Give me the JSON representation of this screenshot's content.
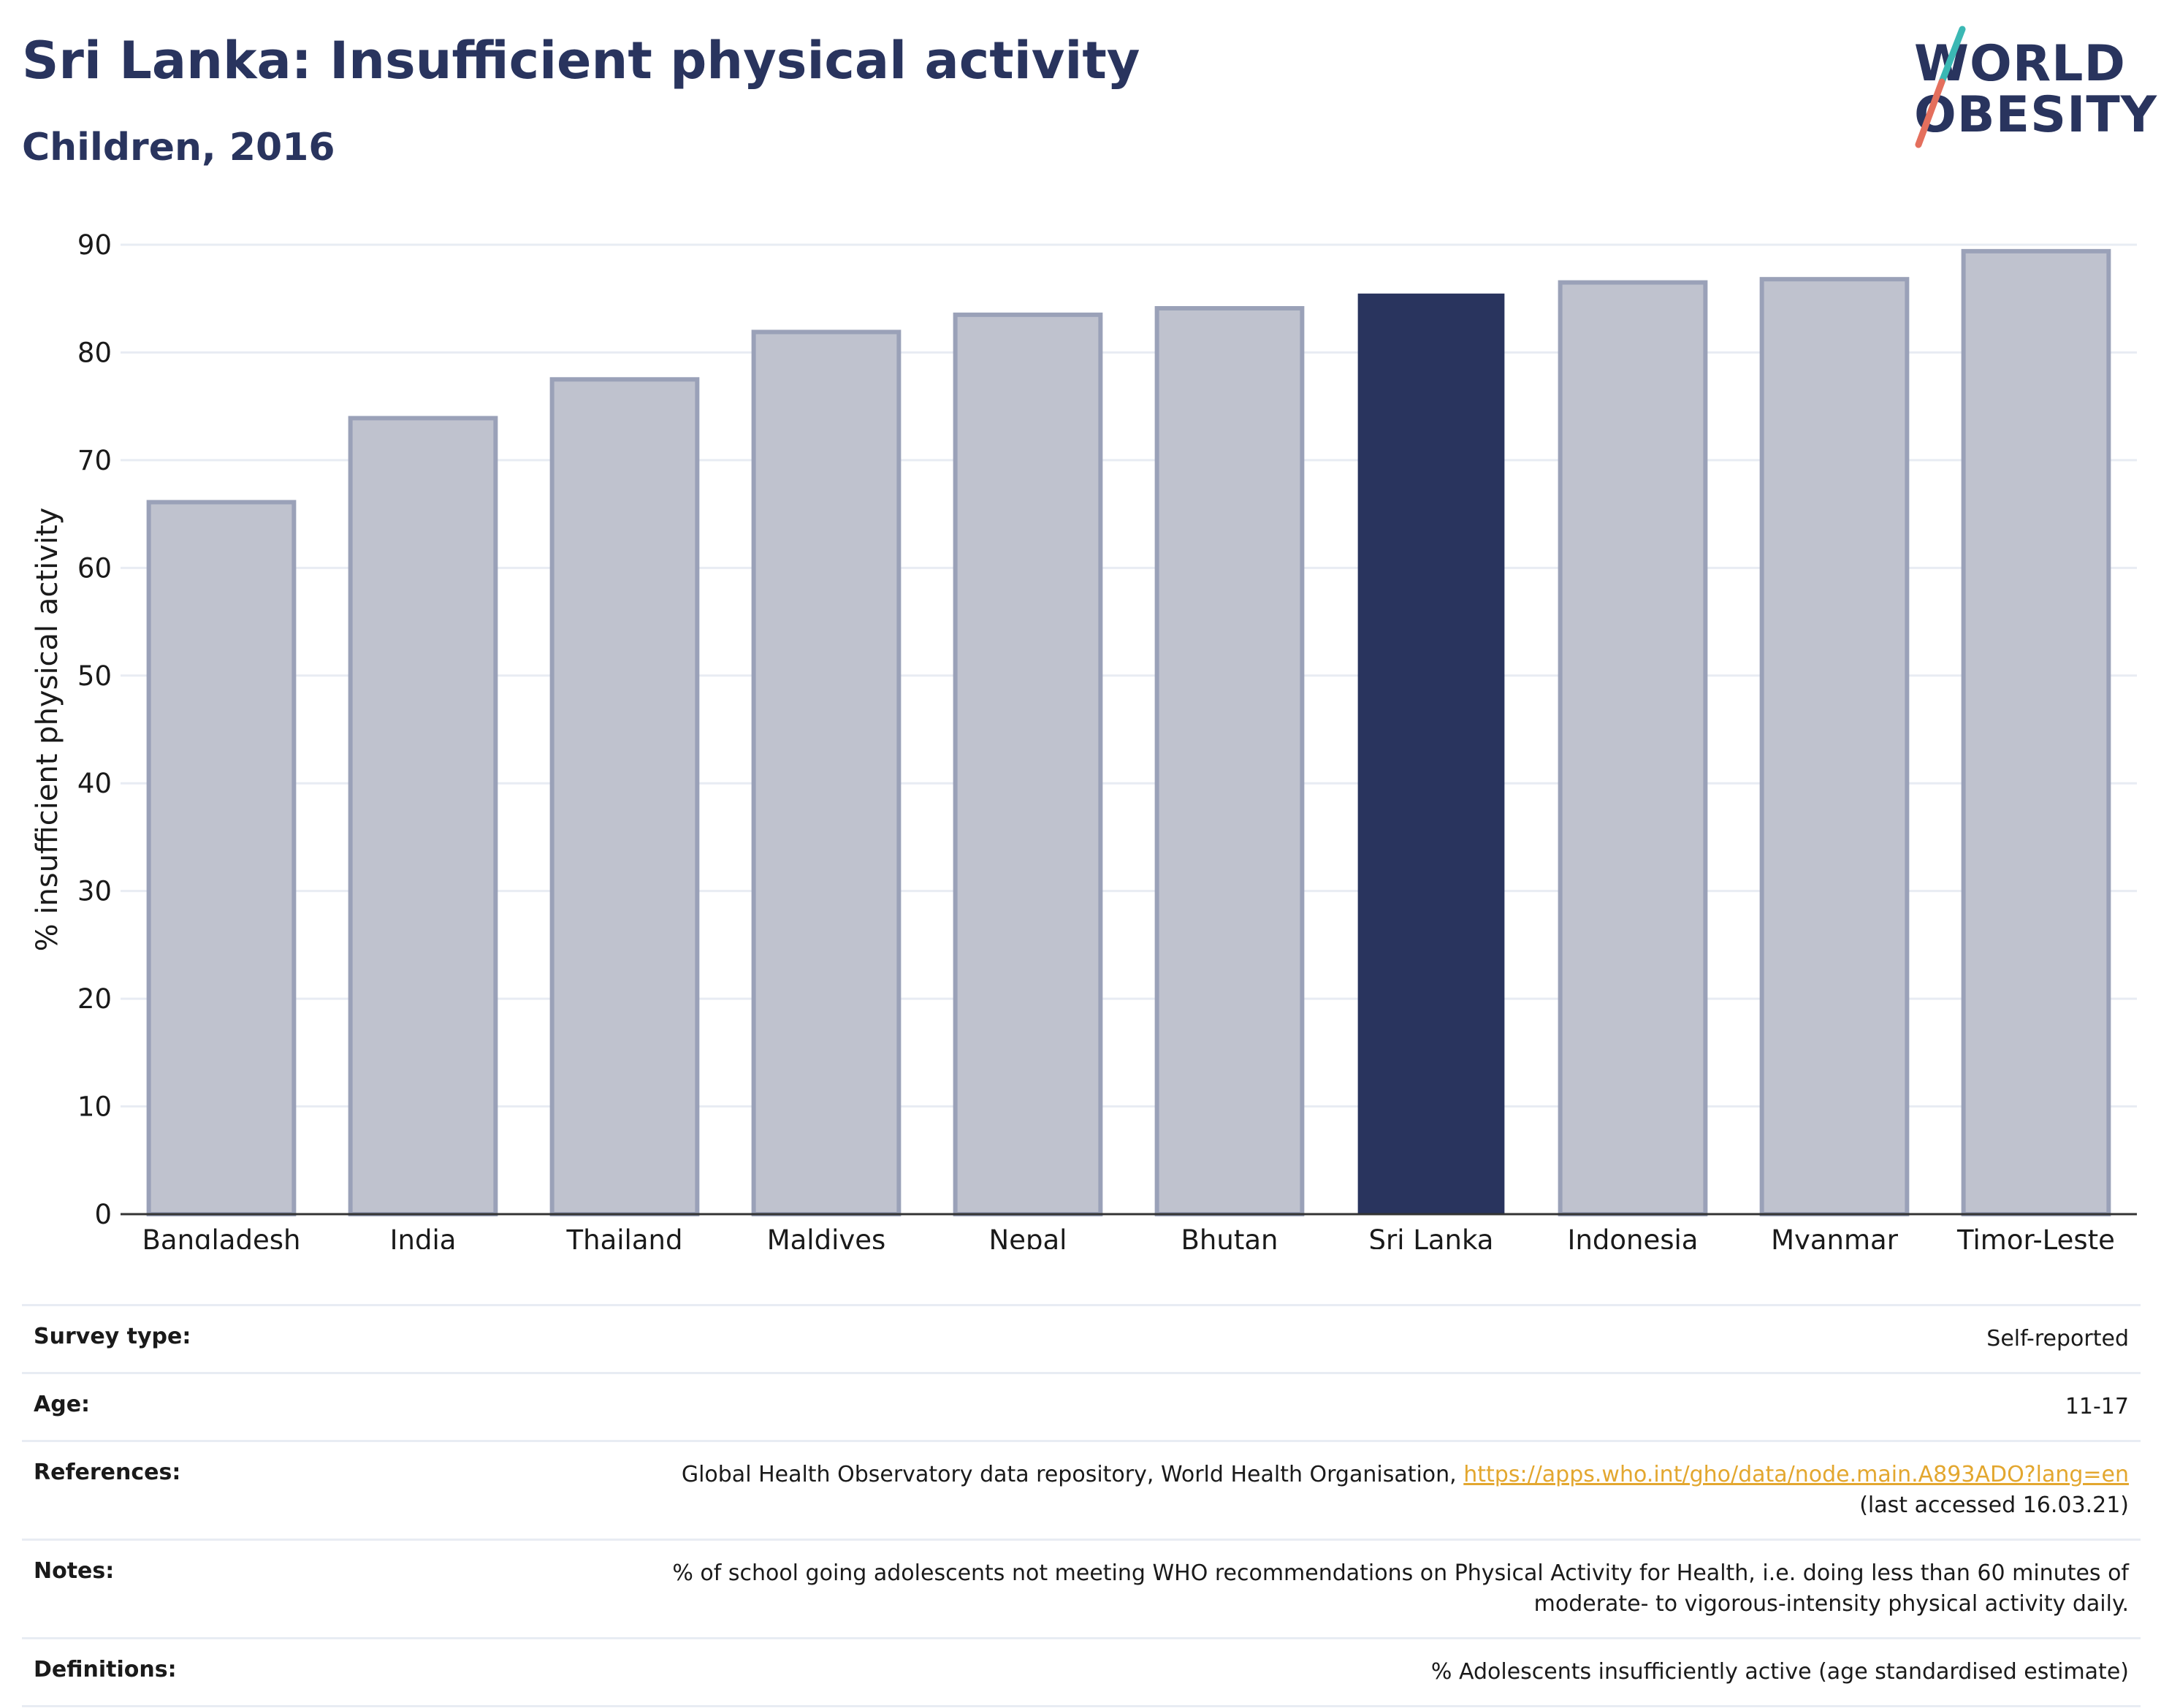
{
  "header": {
    "title": "Sri Lanka: Insufficient physical activity",
    "subtitle": "Children, 2016"
  },
  "logo": {
    "line1": "WORLD",
    "line2": "OBESITY"
  },
  "colors": {
    "highlight": "#29345e",
    "other": "#bfc2ce",
    "other_border": "#9aa1b8",
    "grid": "#e8ecf3",
    "logo_slash_top": "#3bb8b4",
    "logo_slash_bottom": "#e46f5d",
    "link": "#e3a72f"
  },
  "chart_data": {
    "type": "bar",
    "title": "Sri Lanka: Insufficient physical activity",
    "subtitle": "Children, 2016",
    "xlabel": "",
    "ylabel": "% insufficient physical activity",
    "ylim": [
      0,
      90
    ],
    "yticks": [
      0,
      10,
      20,
      30,
      40,
      50,
      60,
      70,
      80,
      90
    ],
    "grid": true,
    "highlight": "Sri Lanka",
    "categories": [
      "Bangladesh",
      "India",
      "Thailand",
      "Maldives",
      "Nepal",
      "Bhutan",
      "Sri Lanka",
      "Indonesia",
      "Myanmar",
      "Timor-Leste"
    ],
    "values": [
      66.1,
      73.9,
      77.5,
      81.9,
      83.5,
      84.1,
      85.4,
      86.5,
      86.8,
      89.4
    ]
  },
  "info": {
    "survey_type": {
      "label": "Survey type:",
      "value": "Self-reported"
    },
    "age": {
      "label": "Age:",
      "value": "11-17"
    },
    "references": {
      "label": "References:",
      "text": "Global Health Observatory data repository, World Health Organisation,",
      "link": "https://apps.who.int/gho/data/node.main.A893ADO?lang=en",
      "accessed": "(last accessed 16.03.21)"
    },
    "notes": {
      "label": "Notes:",
      "line1": "% of school going adolescents not meeting WHO recommendations on Physical Activity for Health, i.e. doing less than 60 minutes of",
      "line2": "moderate- to vigorous-intensity physical activity daily."
    },
    "definitions": {
      "label": "Definitions:",
      "value": "% Adolescents insufficiently active (age standardised estimate)"
    }
  }
}
